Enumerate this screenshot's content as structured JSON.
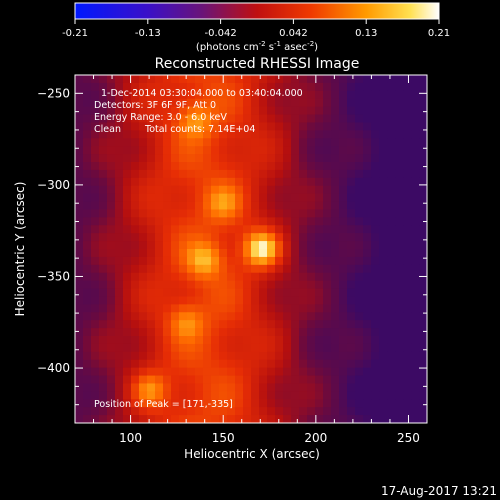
{
  "chart_data": {
    "type": "heatmap",
    "title": "Reconstructed RHESSI Image",
    "xlabel": "Heliocentric X (arcsec)",
    "ylabel": "Heliocentric Y (arcsec)",
    "xlim": [
      70,
      260
    ],
    "ylim": [
      -430,
      -240
    ],
    "xticks": [
      100,
      150,
      200,
      250
    ],
    "yticks": [
      -250,
      -300,
      -350,
      -400
    ],
    "grid": false,
    "colorbar": {
      "range": [
        -0.21,
        0.21
      ],
      "ticks": [
        "-0.21",
        "-0.13",
        "-0.042",
        "0.042",
        "0.13",
        "0.21"
      ],
      "unit_main": "(photons cm",
      "unit_exp1": "-2",
      "unit_mid": " s",
      "unit_exp2": "-1",
      "unit_after": " asec",
      "unit_exp3": "-2",
      "unit_close": ")",
      "colormap": "RHESSI red-temperature (blue-purple-red-orange-yellow-white)"
    },
    "annotations": {
      "time_range": "1-Dec-2014 03:30:04.000 to 03:40:04.000",
      "detectors": "Detectors: 3F 6F 9F, Att 0",
      "energy_range": "Energy Range: 3.0 - 6.0 keV",
      "clean_label": "Clean",
      "total_counts": "Total counts: 7.14E+04",
      "peak_position": "Position of Peak = [171,-335]"
    },
    "peak": {
      "x": 171,
      "y": -335
    },
    "sources": [
      {
        "x": 171,
        "y": -335,
        "intensity": 1.0
      },
      {
        "x": 140,
        "y": -341,
        "intensity": 0.55
      },
      {
        "x": 110,
        "y": -412,
        "intensity": 0.55
      },
      {
        "x": 135,
        "y": -265,
        "intensity": 0.45
      },
      {
        "x": 150,
        "y": -310,
        "intensity": 0.4
      },
      {
        "x": 130,
        "y": -375,
        "intensity": 0.4
      }
    ]
  },
  "footer": {
    "timestamp": "17-Aug-2017 13:21"
  }
}
